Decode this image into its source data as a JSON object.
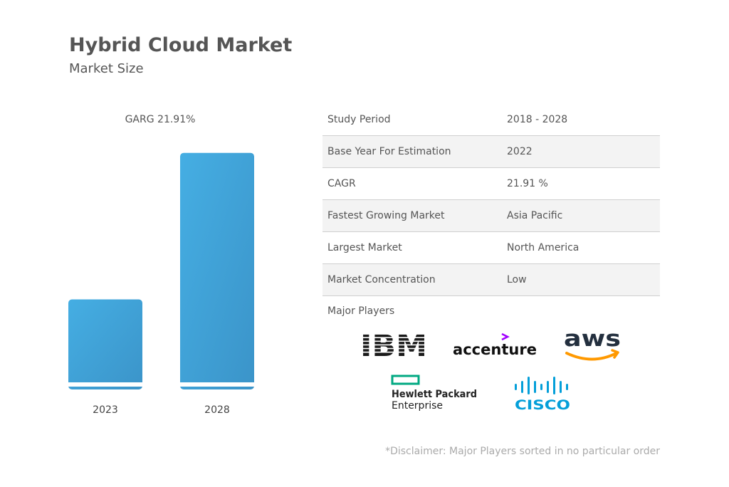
{
  "header": {
    "title": "Hybrid Cloud Market",
    "subtitle": "Market Size"
  },
  "chart_data": {
    "type": "bar",
    "annotation": "GARG 21.91%",
    "categories": [
      "2023",
      "2028"
    ],
    "values": [
      1.0,
      2.68
    ],
    "colors": {
      "bar_top": "#45aee3",
      "bar_bottom": "#3b94c9"
    },
    "ylim": [
      0,
      2.8
    ],
    "grid": false
  },
  "summary_table": {
    "rows": [
      {
        "key": "Study Period",
        "value": "2018 - 2028"
      },
      {
        "key": "Base Year For Estimation",
        "value": "2022"
      },
      {
        "key": "CAGR",
        "value": "21.91 %"
      },
      {
        "key": "Fastest Growing Market",
        "value": "Asia Pacific"
      },
      {
        "key": "Largest Market",
        "value": "North America"
      },
      {
        "key": "Market Concentration",
        "value": "Low"
      }
    ]
  },
  "players": {
    "label": "Major Players",
    "logos": {
      "ibm": "IBM",
      "accenture": "accenture",
      "aws": "aws",
      "hpe_line1": "Hewlett Packard",
      "hpe_line2": "Enterprise",
      "cisco": "CISCO"
    }
  },
  "footer": {
    "disclaimer": "*Disclaimer: Major Players sorted in no particular order"
  }
}
